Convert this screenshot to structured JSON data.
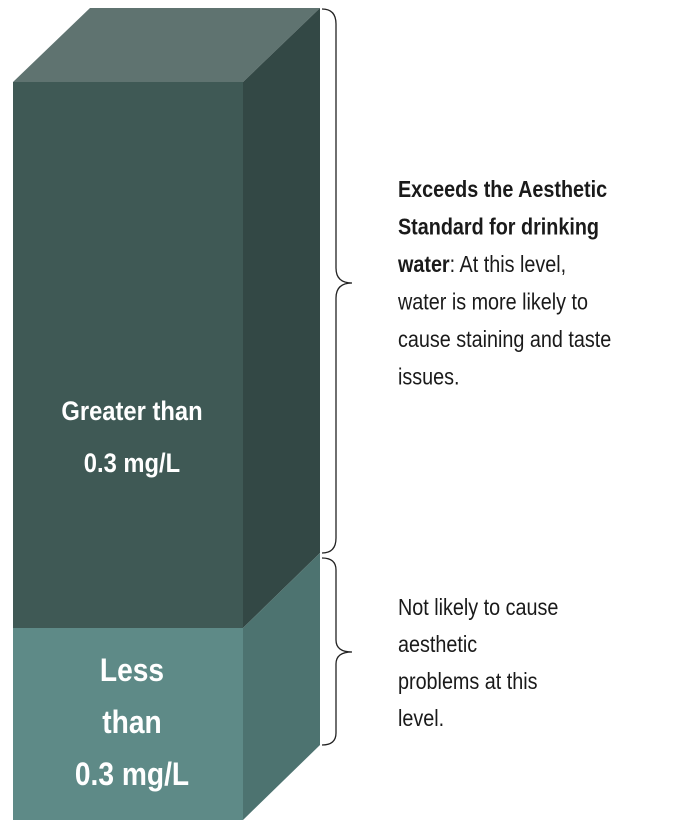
{
  "column": {
    "upper_segment": {
      "lines": [
        "Greater than",
        "0.3 mg/L"
      ]
    },
    "lower_segment": {
      "lines": [
        "Less",
        "than",
        "0.3 mg/L"
      ]
    }
  },
  "annotations": {
    "upper": {
      "lines": [
        {
          "bold": "Exceeds the Aesthetic"
        },
        {
          "bold": "Standard for drinking"
        },
        {
          "bold": "water",
          "text": ":  At this level,"
        },
        {
          "text": "water is more likely to"
        },
        {
          "text": "cause staining and taste"
        },
        {
          "text": "issues."
        }
      ]
    },
    "lower": {
      "lines": [
        {
          "text": "Not likely to cause"
        },
        {
          "text": "aesthetic"
        },
        {
          "text": "problems at this"
        },
        {
          "text": "level."
        }
      ]
    }
  }
}
